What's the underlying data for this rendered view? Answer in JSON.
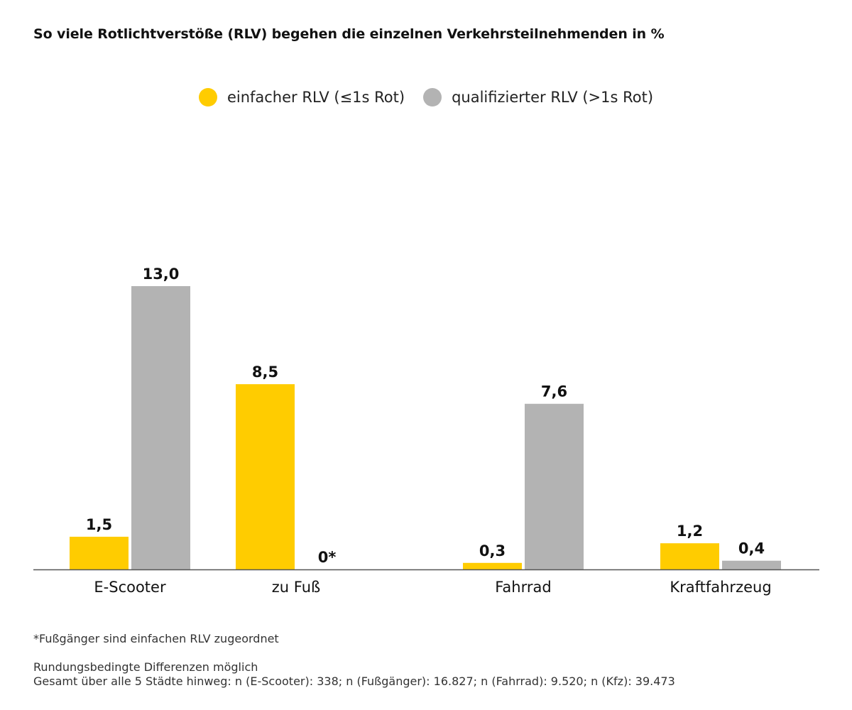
{
  "chart_data": {
    "type": "bar",
    "title": "So viele Rotlichtverstöße (RLV) begehen die einzelnen Verkehrsteilnehmenden in %",
    "categories": [
      "E-Scooter",
      "zu Fuß",
      "Fahrrad",
      "Kraftfahrzeug"
    ],
    "series": [
      {
        "name": "einfacher RLV (≤1s Rot)",
        "color": "#FFCC00",
        "values": [
          1.5,
          8.5,
          0.3,
          1.2
        ],
        "labels": [
          "1,5",
          "8,5",
          "0,3",
          "1,2"
        ]
      },
      {
        "name": "qualifizierter RLV (>1s Rot)",
        "color": "#B3B3B3",
        "values": [
          13.0,
          0,
          7.6,
          0.4
        ],
        "labels": [
          "13,0",
          "0*",
          "7,6",
          "0,4"
        ]
      }
    ],
    "ylim": [
      0,
      13.0
    ],
    "xlabel": "",
    "ylabel": "",
    "grid": false,
    "legend": "top-center"
  },
  "footnote": "*Fußgänger sind einfachen RLV zugeordnet",
  "notes": [
    "Rundungsbedingte Differenzen möglich",
    "Gesamt über alle 5 Städte hinweg: n (E-Scooter): 338; n (Fußgänger): 16.827; n (Fahrrad): 9.520; n (Kfz): 39.473"
  ]
}
